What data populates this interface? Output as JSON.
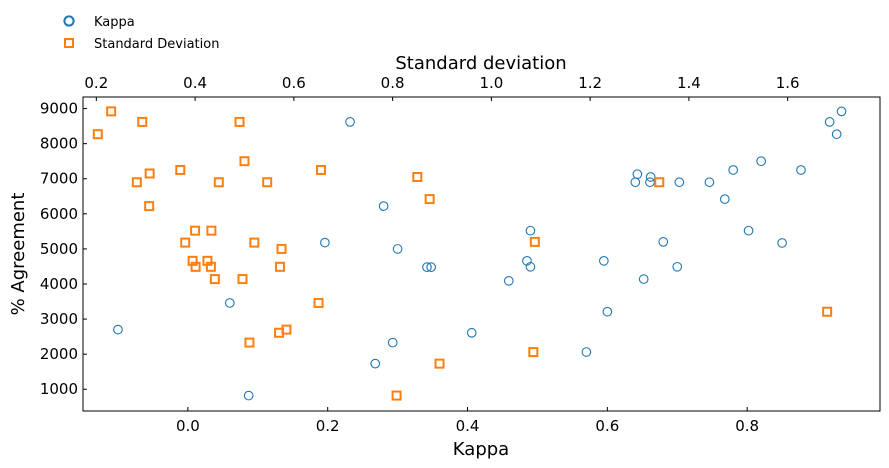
{
  "chart_data": {
    "type": "scatter",
    "x_axis_bottom": {
      "label": "Kappa",
      "range": [
        -0.15,
        0.99
      ],
      "ticks": [
        0.0,
        0.2,
        0.4,
        0.6,
        0.8
      ],
      "tick_labels": [
        "0.0",
        "0.2",
        "0.4",
        "0.6",
        "0.8"
      ]
    },
    "x_axis_top": {
      "label": "Standard deviation",
      "range": [
        0.173,
        1.787
      ],
      "ticks": [
        0.2,
        0.4,
        0.6,
        0.8,
        1.0,
        1.2,
        1.4,
        1.6
      ],
      "tick_labels": [
        "0.2",
        "0.4",
        "0.6",
        "0.8",
        "1.0",
        "1.2",
        "1.4",
        "1.6"
      ]
    },
    "y_axis": {
      "label": "% Agreement",
      "range": [
        380,
        9330
      ],
      "ticks": [
        1000,
        2000,
        3000,
        4000,
        5000,
        6000,
        7000,
        8000,
        9000
      ],
      "tick_labels": [
        "1000",
        "2000",
        "3000",
        "4000",
        "5000",
        "6000",
        "7000",
        "8000",
        "9000"
      ]
    },
    "grid": false,
    "legend_position": "top-left, outside plot",
    "series": [
      {
        "name": "Kappa",
        "marker": "circle-open",
        "color": "#1f77b4",
        "x_axis": "bottom",
        "points": [
          [
            0.935,
            8920
          ],
          [
            0.918,
            8620
          ],
          [
            0.928,
            8270
          ],
          [
            0.232,
            8620
          ],
          [
            0.877,
            7250
          ],
          [
            0.82,
            7500
          ],
          [
            0.78,
            7250
          ],
          [
            0.703,
            6900
          ],
          [
            0.746,
            6900
          ],
          [
            0.662,
            7050
          ],
          [
            0.643,
            7130
          ],
          [
            0.64,
            6900
          ],
          [
            0.661,
            6900
          ],
          [
            0.768,
            6420
          ],
          [
            0.28,
            6220
          ],
          [
            0.802,
            5520
          ],
          [
            0.49,
            5520
          ],
          [
            0.196,
            5180
          ],
          [
            0.68,
            5200
          ],
          [
            0.85,
            5170
          ],
          [
            0.3,
            5000
          ],
          [
            0.485,
            4660
          ],
          [
            0.595,
            4660
          ],
          [
            0.49,
            4490
          ],
          [
            0.342,
            4480
          ],
          [
            0.348,
            4480
          ],
          [
            0.7,
            4490
          ],
          [
            0.652,
            4140
          ],
          [
            0.459,
            4090
          ],
          [
            0.06,
            3460
          ],
          [
            0.6,
            3210
          ],
          [
            -0.1,
            2700
          ],
          [
            0.406,
            2610
          ],
          [
            0.293,
            2330
          ],
          [
            0.57,
            2060
          ],
          [
            0.268,
            1730
          ],
          [
            0.087,
            820
          ]
        ]
      },
      {
        "name": "Standard Deviation",
        "marker": "square-open",
        "color": "#ff7f0e",
        "x_axis": "top",
        "points": [
          [
            0.23,
            8920
          ],
          [
            0.203,
            8270
          ],
          [
            0.293,
            8620
          ],
          [
            0.49,
            8620
          ],
          [
            0.5,
            7500
          ],
          [
            0.655,
            7250
          ],
          [
            0.37,
            7250
          ],
          [
            0.308,
            7150
          ],
          [
            0.85,
            7050
          ],
          [
            0.282,
            6900
          ],
          [
            0.448,
            6900
          ],
          [
            0.546,
            6900
          ],
          [
            1.34,
            6900
          ],
          [
            0.875,
            6420
          ],
          [
            0.307,
            6220
          ],
          [
            0.4,
            5520
          ],
          [
            0.433,
            5520
          ],
          [
            0.38,
            5180
          ],
          [
            0.52,
            5180
          ],
          [
            1.088,
            5200
          ],
          [
            0.575,
            5000
          ],
          [
            0.395,
            4660
          ],
          [
            0.425,
            4660
          ],
          [
            0.401,
            4490
          ],
          [
            0.432,
            4490
          ],
          [
            0.572,
            4490
          ],
          [
            0.44,
            4140
          ],
          [
            0.496,
            4140
          ],
          [
            0.65,
            3460
          ],
          [
            1.68,
            3210
          ],
          [
            0.585,
            2700
          ],
          [
            0.57,
            2610
          ],
          [
            0.51,
            2330
          ],
          [
            1.085,
            2060
          ],
          [
            0.895,
            1730
          ],
          [
            0.808,
            820
          ]
        ]
      }
    ]
  }
}
